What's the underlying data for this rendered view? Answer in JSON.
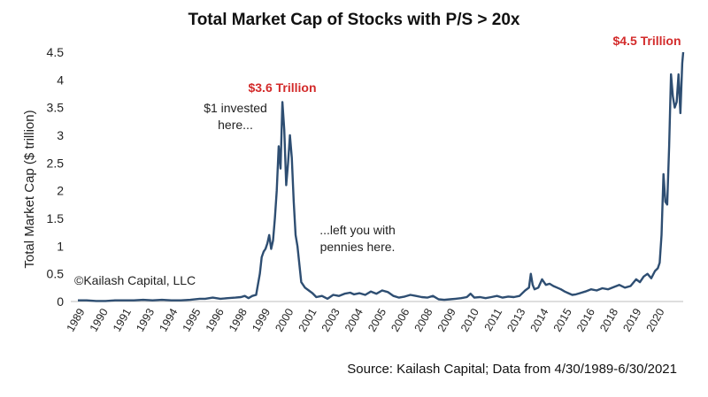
{
  "chart_data": {
    "type": "line",
    "title": "Total Market Cap of Stocks with P/S > 20x",
    "ylabel": "Total Market Cap ($ trillion)",
    "xlabel": "",
    "ylim": [
      0,
      4.5
    ],
    "xlim": [
      1989.33,
      2021.5
    ],
    "y_ticks": [
      "0",
      "0.5",
      "1",
      "1.5",
      "2",
      "2.5",
      "3",
      "3.5",
      "4",
      "4.5"
    ],
    "x_ticks": [
      "1989",
      "1990",
      "1991",
      "1993",
      "1994",
      "1995",
      "1996",
      "1998",
      "1999",
      "2000",
      "2001",
      "2003",
      "2004",
      "2005",
      "2006",
      "2008",
      "2009",
      "2010",
      "2011",
      "2013",
      "2014",
      "2015",
      "2016",
      "2018",
      "2019",
      "2020"
    ],
    "grid": false,
    "line_color": "#2e4e72",
    "series": [
      {
        "x": [
          1989.33,
          1989.8,
          1990.3,
          1990.8,
          1991.3,
          1991.8,
          1992.3,
          1992.8,
          1993.3,
          1993.8,
          1994.3,
          1994.8,
          1995.3,
          1995.8,
          1996.1,
          1996.5,
          1996.9,
          1997.3,
          1997.7,
          1998.0,
          1998.2,
          1998.4,
          1998.6,
          1998.8,
          1999.0,
          1999.1,
          1999.2,
          1999.3,
          1999.4,
          1999.5,
          1999.6,
          1999.7,
          1999.8,
          1999.9,
          2000.0,
          2000.1,
          2000.2,
          2000.3,
          2000.4,
          2000.5,
          2000.6,
          2000.7,
          2000.8,
          2000.9,
          2001.0,
          2001.2,
          2001.4,
          2001.6,
          2001.8,
          2002.0,
          2002.3,
          2002.6,
          2002.9,
          2003.2,
          2003.5,
          2003.8,
          2004.0,
          2004.3,
          2004.6,
          2004.9,
          2005.2,
          2005.5,
          2005.8,
          2006.1,
          2006.4,
          2006.7,
          2007.0,
          2007.3,
          2007.6,
          2007.9,
          2008.2,
          2008.5,
          2008.8,
          2009.1,
          2009.4,
          2009.7,
          2010.0,
          2010.2,
          2010.4,
          2010.7,
          2011.0,
          2011.3,
          2011.6,
          2011.9,
          2012.2,
          2012.5,
          2012.8,
          2013.1,
          2013.3,
          2013.4,
          2013.5,
          2013.6,
          2013.8,
          2014.0,
          2014.2,
          2014.4,
          2014.6,
          2014.8,
          2015.0,
          2015.2,
          2015.4,
          2015.6,
          2015.8,
          2016.0,
          2016.3,
          2016.6,
          2016.9,
          2017.2,
          2017.5,
          2017.8,
          2018.1,
          2018.4,
          2018.7,
          2019.0,
          2019.2,
          2019.4,
          2019.6,
          2019.8,
          2020.0,
          2020.15,
          2020.25,
          2020.35,
          2020.45,
          2020.55,
          2020.65,
          2020.75,
          2020.85,
          2020.95,
          2021.05,
          2021.15,
          2021.25,
          2021.35,
          2021.45,
          2021.5
        ],
        "values": [
          0.02,
          0.02,
          0.01,
          0.01,
          0.02,
          0.02,
          0.02,
          0.03,
          0.02,
          0.03,
          0.02,
          0.02,
          0.03,
          0.05,
          0.05,
          0.07,
          0.05,
          0.06,
          0.07,
          0.08,
          0.1,
          0.06,
          0.1,
          0.12,
          0.5,
          0.8,
          0.9,
          0.95,
          1.05,
          1.2,
          0.95,
          1.1,
          1.5,
          2.0,
          2.8,
          2.4,
          3.6,
          3.1,
          2.1,
          2.5,
          3.0,
          2.6,
          1.8,
          1.2,
          1.0,
          0.35,
          0.25,
          0.2,
          0.15,
          0.08,
          0.1,
          0.05,
          0.12,
          0.1,
          0.14,
          0.16,
          0.13,
          0.15,
          0.12,
          0.18,
          0.14,
          0.2,
          0.17,
          0.1,
          0.07,
          0.09,
          0.12,
          0.1,
          0.08,
          0.07,
          0.1,
          0.04,
          0.03,
          0.04,
          0.05,
          0.06,
          0.08,
          0.14,
          0.07,
          0.08,
          0.06,
          0.08,
          0.1,
          0.07,
          0.09,
          0.08,
          0.1,
          0.2,
          0.25,
          0.5,
          0.3,
          0.22,
          0.25,
          0.4,
          0.3,
          0.32,
          0.28,
          0.25,
          0.22,
          0.18,
          0.15,
          0.12,
          0.13,
          0.15,
          0.18,
          0.22,
          0.2,
          0.24,
          0.22,
          0.26,
          0.3,
          0.25,
          0.28,
          0.4,
          0.35,
          0.45,
          0.5,
          0.42,
          0.55,
          0.6,
          0.7,
          1.2,
          2.3,
          1.8,
          1.75,
          2.8,
          4.1,
          3.7,
          3.5,
          3.6,
          4.1,
          3.4,
          4.3,
          4.5
        ]
      }
    ],
    "annotations": {
      "peak_2000": "$3.6 Trillion",
      "peak_2021": "$4.5 Trillion",
      "invested_line1": "$1 invested",
      "invested_line2": "here...",
      "left_line1": "...left you with",
      "left_line2": "pennies here.",
      "copyright": "©Kailash Capital, LLC"
    },
    "source": "Source: Kailash Capital; Data from 4/30/1989-6/30/2021"
  }
}
